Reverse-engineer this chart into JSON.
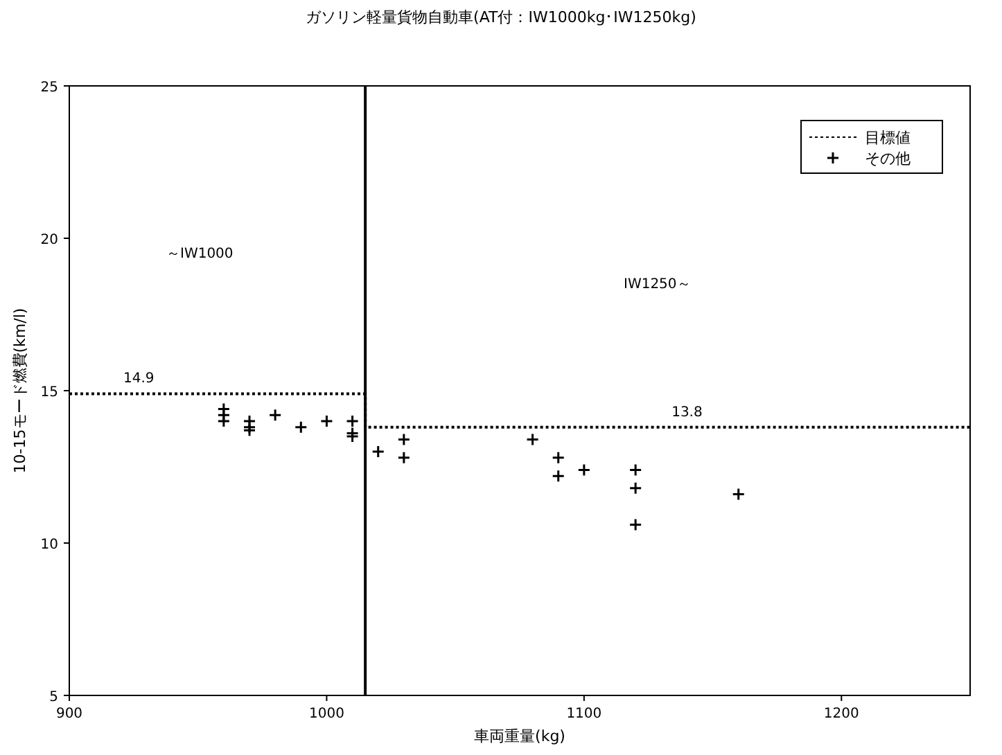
{
  "chart_data": {
    "type": "scatter",
    "title": "ガソリン軽量貨物自動車(AT付：IW1000kg･IW1250kg)",
    "xlabel": "車両重量(kg)",
    "ylabel": "10-15モード燃費(km/l)",
    "xlim": [
      900,
      1250
    ],
    "xticks": [
      900,
      1000,
      1100,
      1200
    ],
    "ylim": [
      5,
      25
    ],
    "yticks": [
      5,
      10,
      15,
      20,
      25
    ],
    "grid": false,
    "legend": "top right",
    "series": [
      {
        "name": "目標値",
        "type": "line",
        "color": "#000000",
        "line_style": "dotted",
        "marker": "none",
        "x": [
          900,
          1015,
          1015,
          1250
        ],
        "values": [
          14.9,
          14.9,
          13.8,
          13.8
        ]
      },
      {
        "name": "その他",
        "color": "#000000",
        "marker": "cross",
        "x": [
          960,
          960,
          960,
          970,
          970,
          970,
          980,
          990,
          1000,
          1010,
          1010,
          1010,
          1020,
          1030,
          1030,
          1080,
          1090,
          1090,
          1100,
          1120,
          1120,
          1120,
          1160
        ],
        "values": [
          14.4,
          14.2,
          14.0,
          14.0,
          13.8,
          13.7,
          14.2,
          13.8,
          14.0,
          14.0,
          13.6,
          13.5,
          13.0,
          13.4,
          12.8,
          13.4,
          12.8,
          12.2,
          12.4,
          12.4,
          11.8,
          10.6,
          11.6
        ]
      }
    ],
    "ref_lines": [
      {
        "axis": "x",
        "value": 1015,
        "color": "#000000",
        "line_style": "solid"
      }
    ],
    "annotations": [
      {
        "text": "14.9",
        "x": 927,
        "y": 14.9
      },
      {
        "text": "13.8",
        "x": 1140,
        "y": 13.8
      },
      "～IW1000",
      "IW1250～"
    ]
  }
}
